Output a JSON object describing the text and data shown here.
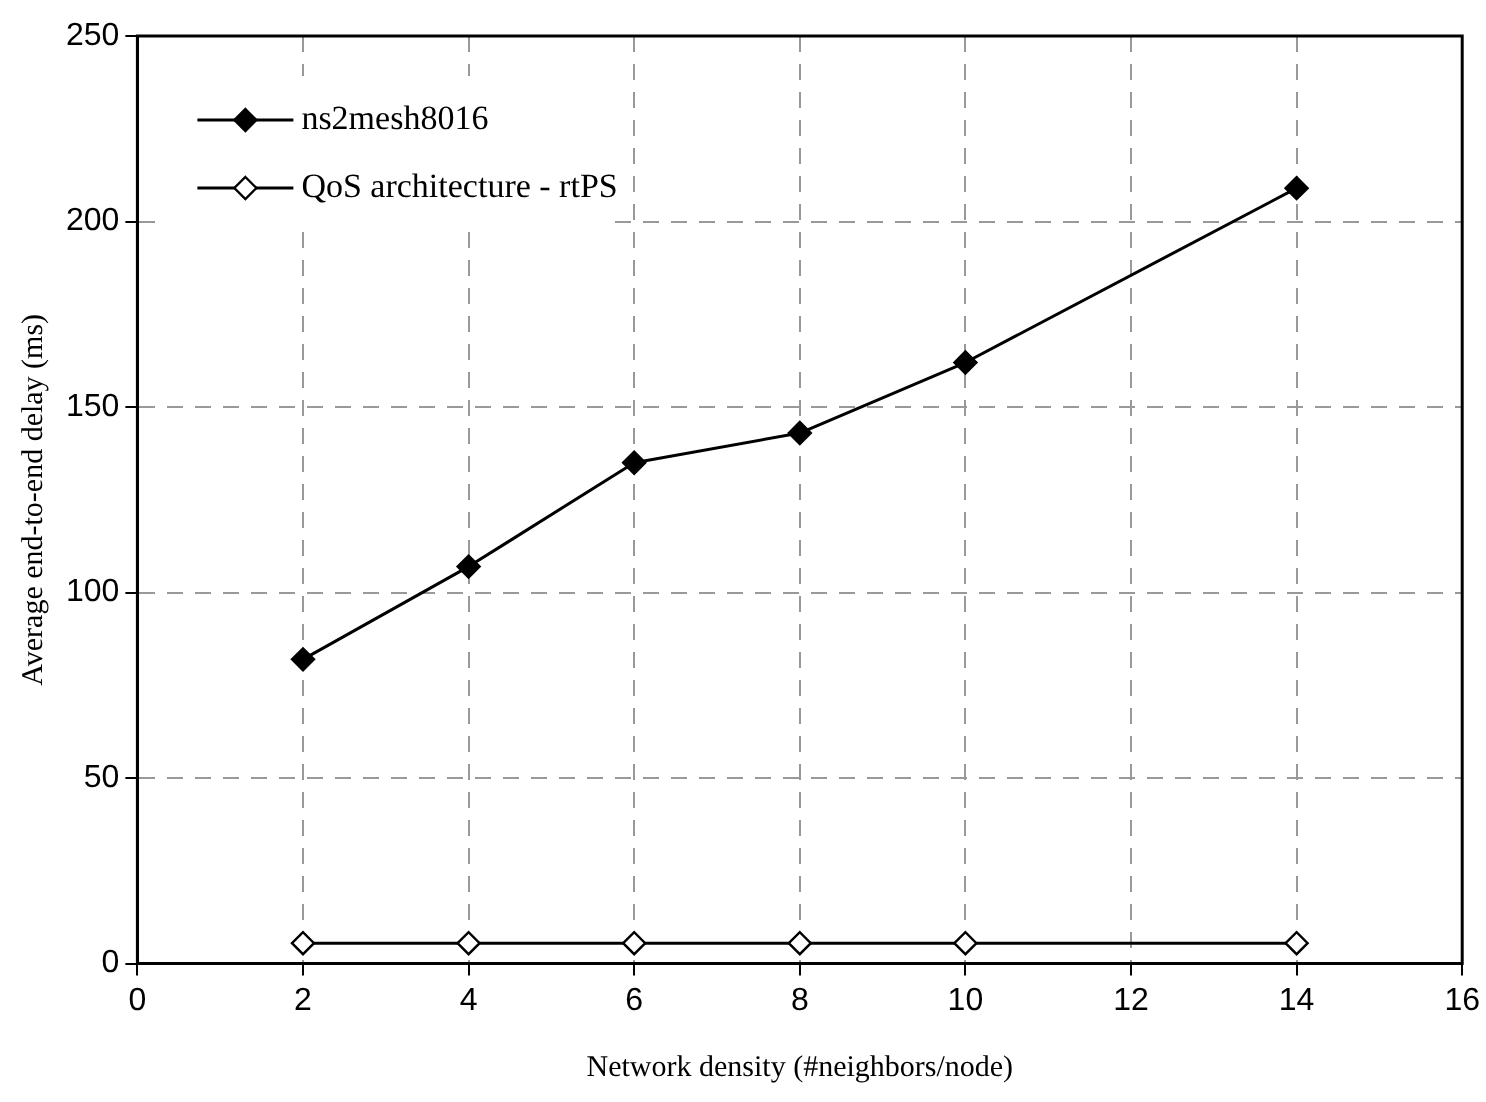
{
  "chart_data": {
    "type": "line",
    "xlabel": "Network density (#neighbors/node)",
    "ylabel": "Average end-to-end delay (ms)",
    "xlim": [
      0,
      16
    ],
    "xticks": [
      0,
      2,
      4,
      6,
      8,
      10,
      12,
      14,
      16
    ],
    "ylim": [
      0,
      250
    ],
    "yticks": [
      0,
      50,
      100,
      150,
      200,
      250
    ],
    "grid": true,
    "legend": "top left",
    "marker": "diamond",
    "line_style": "solid",
    "series": [
      {
        "name": "ns2mesh8016",
        "color": "#000000",
        "x": [
          2,
          4,
          6,
          8,
          10,
          14
        ],
        "values": [
          82,
          107,
          135,
          143,
          162,
          209
        ]
      },
      {
        "name": "QoS architecture - rtPS",
        "color": "#000000",
        "x": [
          2,
          4,
          6,
          8,
          10,
          14
        ],
        "values": [
          5.5,
          5.5,
          5.5,
          5.5,
          5.5,
          5.5
        ]
      }
    ]
  }
}
